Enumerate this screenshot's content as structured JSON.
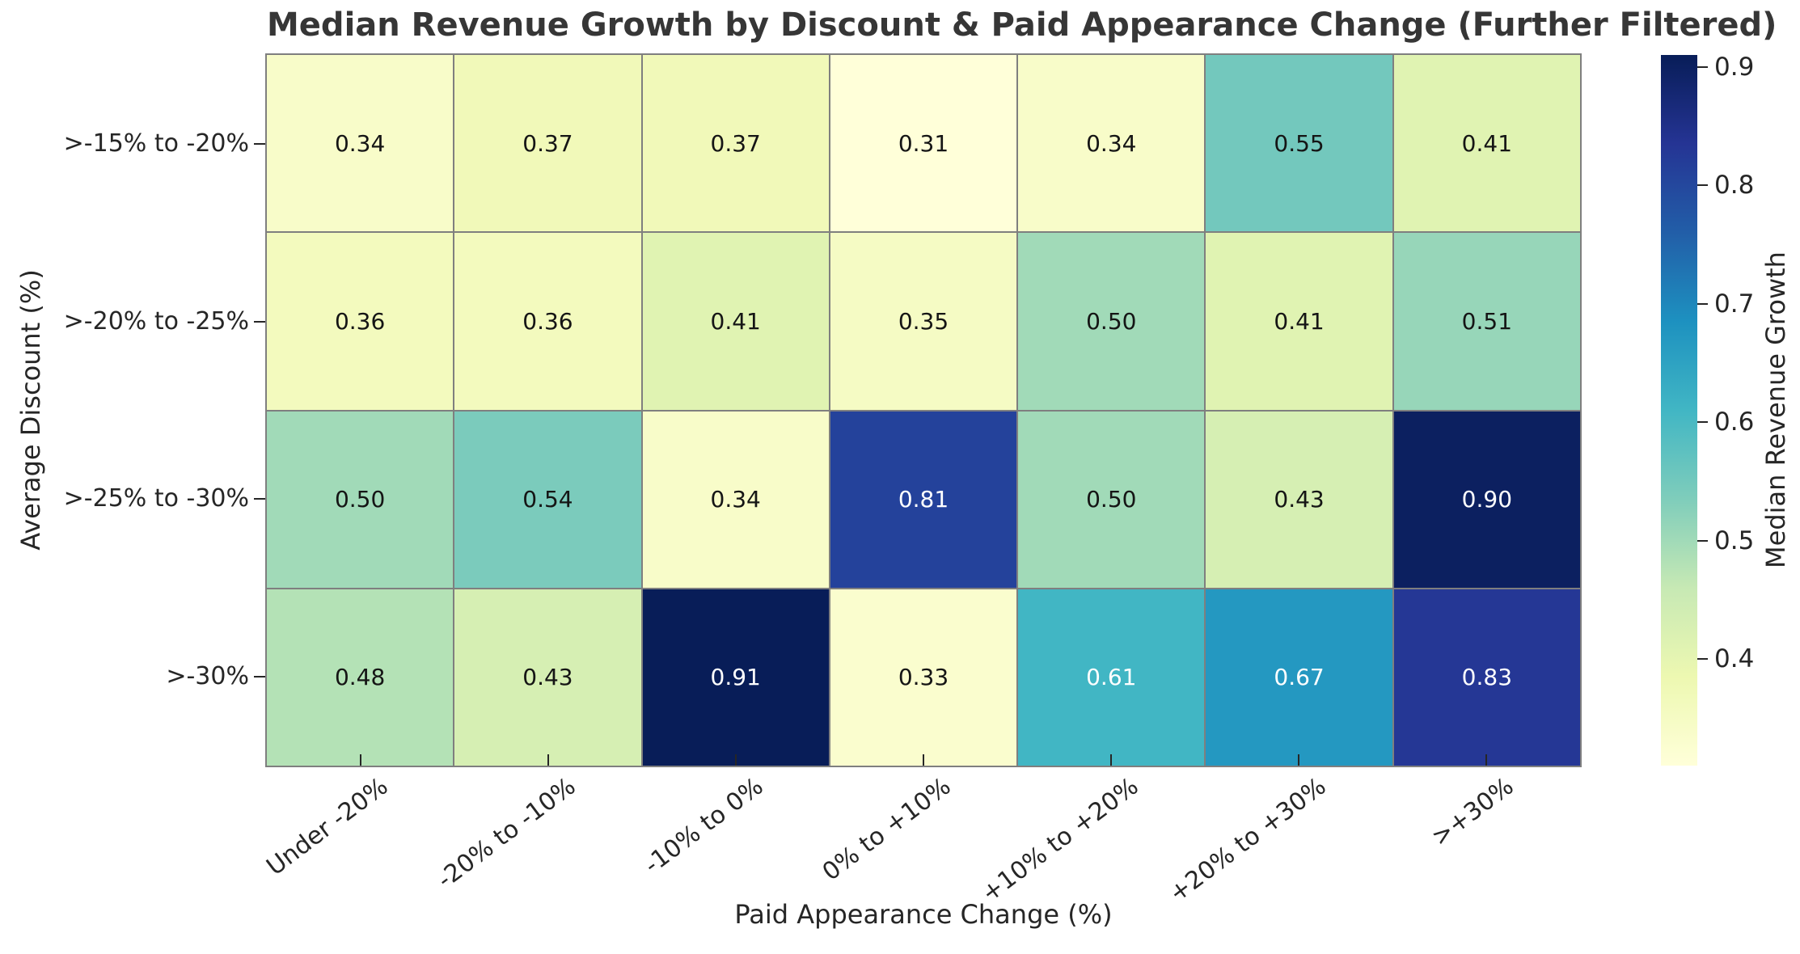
{
  "chart_data": {
    "type": "heatmap",
    "title": "Median Revenue Growth by Discount & Paid Appearance Change (Further Filtered)",
    "xlabel": "Paid Appearance Change (%)",
    "ylabel": "Average Discount (%)",
    "colorbar_label": "Median Revenue Growth",
    "x_categories": [
      "Under -20%",
      "-20% to -10%",
      "-10% to 0%",
      "0% to +10%",
      "+10% to +20%",
      "+20% to +30%",
      ">+30%"
    ],
    "y_categories": [
      ">-15% to -20%",
      ">-20% to -25%",
      ">-25% to -30%",
      ">-30%"
    ],
    "values": [
      [
        0.34,
        0.37,
        0.37,
        0.31,
        0.34,
        0.55,
        0.41
      ],
      [
        0.36,
        0.36,
        0.41,
        0.35,
        0.5,
        0.41,
        0.51
      ],
      [
        0.5,
        0.54,
        0.34,
        0.81,
        0.5,
        0.43,
        0.9
      ],
      [
        0.48,
        0.43,
        0.91,
        0.33,
        0.61,
        0.67,
        0.83
      ]
    ],
    "annotation_decimals": 2,
    "vmin": 0.31,
    "vmax": 0.91,
    "colorbar_ticks": [
      0.4,
      0.5,
      0.6,
      0.7,
      0.8,
      0.9
    ],
    "grid_on": true,
    "legend_position": "right-colorbar",
    "colormap": {
      "name": "YlGnBu",
      "stops": [
        [
          0.0,
          "#ffffd9"
        ],
        [
          0.125,
          "#edf8b1"
        ],
        [
          0.25,
          "#c7e9b4"
        ],
        [
          0.375,
          "#7fcdbb"
        ],
        [
          0.5,
          "#41b6c4"
        ],
        [
          0.625,
          "#1d91c0"
        ],
        [
          0.75,
          "#225ea8"
        ],
        [
          0.875,
          "#253494"
        ],
        [
          1.0,
          "#081d58"
        ]
      ]
    }
  },
  "colors": {
    "background": "#ffffff",
    "gridline": "#7f7f7f",
    "title_text": "#363636",
    "tick_text": "#262626",
    "annotation_dark_text": "#151515",
    "annotation_light_text": "#ffffff"
  }
}
